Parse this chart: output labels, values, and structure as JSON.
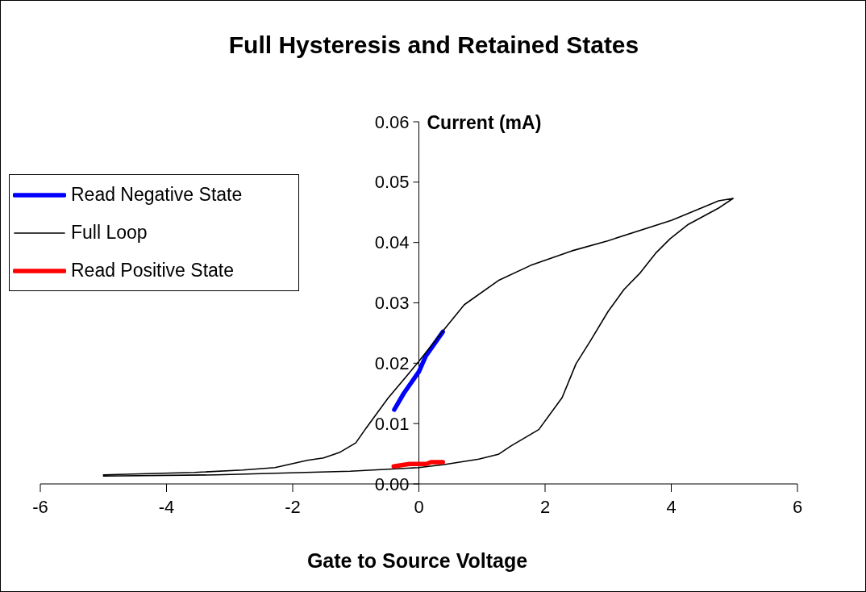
{
  "chart_data": {
    "type": "line",
    "title": "Full Hysteresis and Retained States",
    "xlabel": "Gate to Source Voltage",
    "ylabel": "Current (mA)",
    "xlim": [
      -6,
      6
    ],
    "xticks": [
      -6,
      -4,
      -2,
      0,
      2,
      4,
      6
    ],
    "ylim": [
      0,
      0.06
    ],
    "yticks": [
      {
        "value": 0,
        "label": "0.00"
      },
      {
        "value": 0.01,
        "label": "0.01"
      },
      {
        "value": 0.02,
        "label": "0.02"
      },
      {
        "value": 0.03,
        "label": "0.03"
      },
      {
        "value": 0.04,
        "label": "0.04"
      },
      {
        "value": 0.05,
        "label": "0.05"
      },
      {
        "value": 0.06,
        "label": "0.06"
      }
    ],
    "legend": "left",
    "series": [
      {
        "name": "Read Negative State",
        "color": "#0000ff",
        "x": [
          -0.39,
          -0.24,
          0,
          0.11,
          0.38
        ],
        "values": [
          0.0123,
          0.015,
          0.0186,
          0.0212,
          0.0252
        ]
      },
      {
        "name": "Full Loop",
        "color": "#000000",
        "x": [
          -5,
          -3.21,
          -1.09,
          0,
          0.4,
          0.95,
          1.26,
          1.46,
          1.9,
          2.27,
          2.49,
          2.73,
          3,
          3.25,
          3.51,
          3.75,
          3.98,
          4.27,
          4.75,
          4.98,
          4.75,
          4.01,
          3,
          2.42,
          1.77,
          1.26,
          0.72,
          0.4,
          0,
          -0.49,
          -0.84,
          -1,
          -1.26,
          -1.51,
          -1.77,
          -2.28,
          -2.79,
          -3.56,
          -4.29,
          -5
        ],
        "values": [
          0.0013,
          0.0015,
          0.0021,
          0.0027,
          0.0032,
          0.0041,
          0.0049,
          0.0063,
          0.009,
          0.0143,
          0.0199,
          0.0239,
          0.0286,
          0.0322,
          0.035,
          0.0382,
          0.0406,
          0.043,
          0.0457,
          0.0473,
          0.0469,
          0.0437,
          0.0403,
          0.0386,
          0.0362,
          0.0337,
          0.0297,
          0.0256,
          0.0203,
          0.0142,
          0.0092,
          0.0068,
          0.0052,
          0.0043,
          0.0039,
          0.0027,
          0.0023,
          0.0019,
          0.0017,
          0.0015
        ]
      },
      {
        "name": "Read Positive State",
        "color": "#ff0000",
        "x": [
          -0.4,
          -0.15,
          0.12,
          0.19,
          0.38
        ],
        "values": [
          0.0029,
          0.0033,
          0.0033,
          0.0036,
          0.0036
        ]
      }
    ]
  }
}
